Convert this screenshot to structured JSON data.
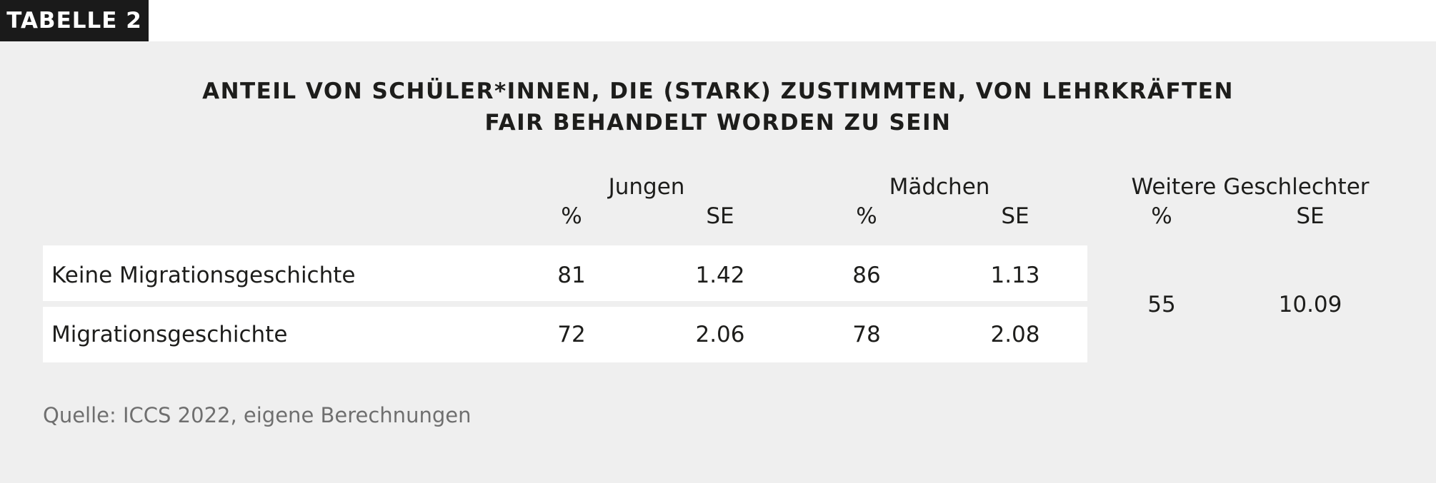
{
  "tag": "TABELLE 2",
  "title": {
    "line1": "ANTEIL VON SCHÜLER*INNEN, DIE (STARK) ZUSTIMMTEN, VON LEHRKRÄFTEN",
    "line2": "FAIR BEHANDELT WORDEN ZU SEIN"
  },
  "groups": [
    "Jungen",
    "Mädchen",
    "Weitere Geschlechter"
  ],
  "subheaders": {
    "pct": "%",
    "se": "SE"
  },
  "rows": [
    {
      "label": "Keine Migrationsgeschichte",
      "jungen_pct": "81",
      "jungen_se": "1.42",
      "maedchen_pct": "86",
      "maedchen_se": "1.13"
    },
    {
      "label": "Migrationsgeschichte",
      "jungen_pct": "72",
      "jungen_se": "2.06",
      "maedchen_pct": "78",
      "maedchen_se": "2.08"
    }
  ],
  "weitere": {
    "pct": "55",
    "se": "10.09"
  },
  "source": "Quelle: ICCS 2022, eigene Berechnungen"
}
